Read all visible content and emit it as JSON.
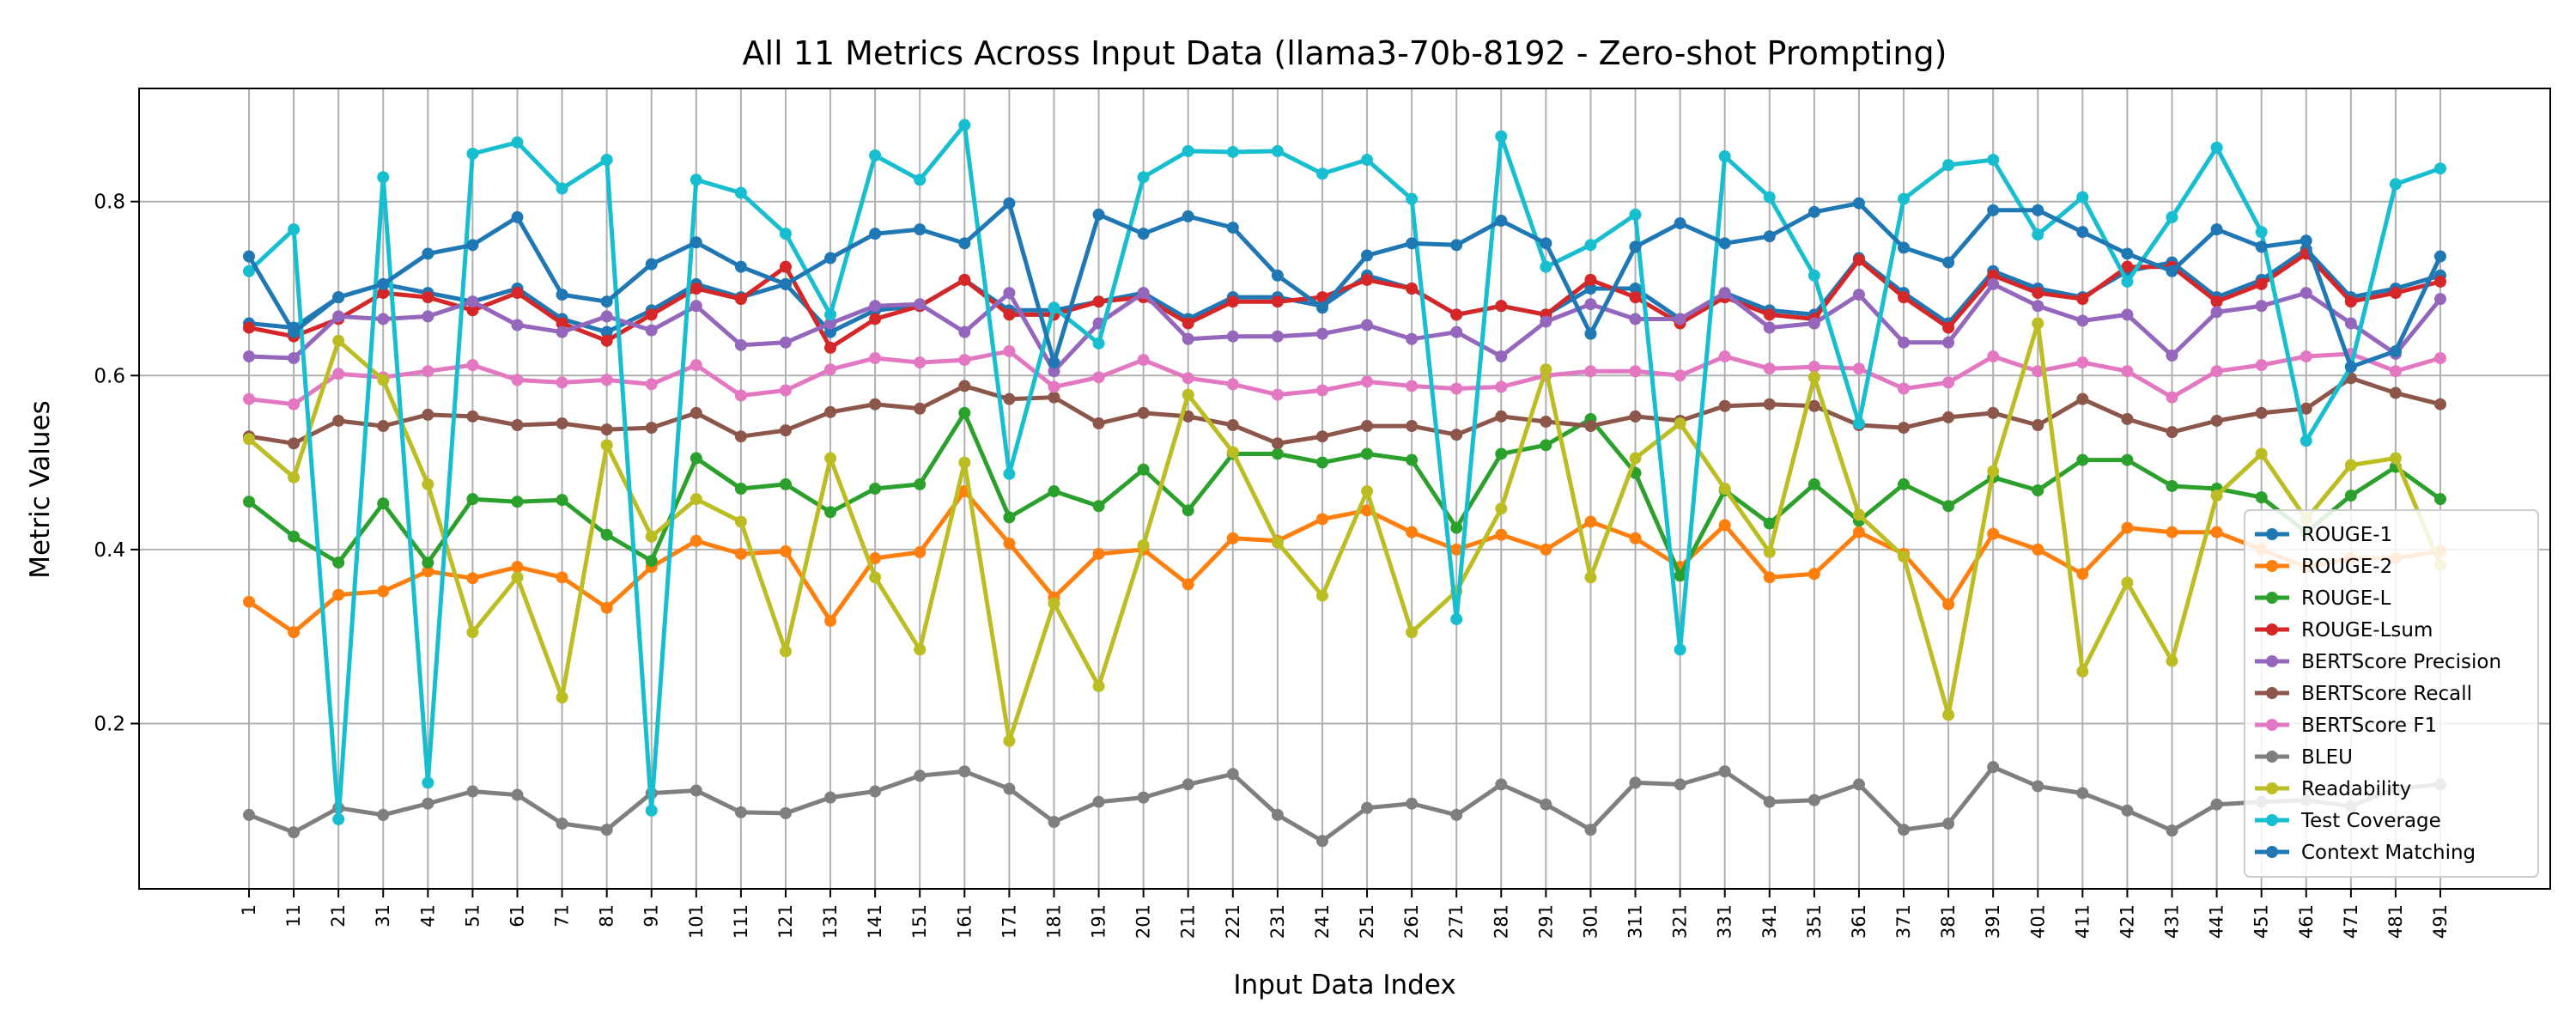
{
  "chart_data": {
    "type": "line",
    "title": "All 11 Metrics Across Input Data (llama3-70b-8192 - Zero-shot Prompting)",
    "xlabel": "Input Data Index",
    "ylabel": "Metric Values",
    "ylim": [
      0.01,
      0.93
    ],
    "yticks": [
      0.2,
      0.4,
      0.6,
      0.8
    ],
    "grid": true,
    "legend_position": "lower-right",
    "x": [
      1,
      11,
      21,
      31,
      41,
      51,
      61,
      71,
      81,
      91,
      101,
      111,
      121,
      131,
      141,
      151,
      161,
      171,
      181,
      191,
      201,
      211,
      221,
      231,
      241,
      251,
      261,
      271,
      281,
      291,
      301,
      311,
      321,
      331,
      341,
      351,
      361,
      371,
      381,
      391,
      401,
      411,
      421,
      431,
      441,
      451,
      461,
      471,
      481,
      491
    ],
    "series": [
      {
        "name": "ROUGE-1",
        "color": "#1f77b4",
        "values": [
          0.66,
          0.655,
          0.69,
          0.705,
          0.695,
          0.685,
          0.7,
          0.665,
          0.65,
          0.675,
          0.705,
          0.69,
          0.705,
          0.65,
          0.675,
          0.68,
          0.71,
          0.675,
          0.675,
          0.685,
          0.695,
          0.665,
          0.69,
          0.69,
          0.68,
          0.715,
          0.7,
          0.67,
          0.68,
          0.67,
          0.7,
          0.7,
          0.665,
          0.695,
          0.675,
          0.67,
          0.735,
          0.695,
          0.66,
          0.72,
          0.7,
          0.69,
          0.72,
          0.73,
          0.69,
          0.71,
          0.745,
          0.69,
          0.7,
          0.715
        ]
      },
      {
        "name": "ROUGE-2",
        "color": "#ff7f0e",
        "values": [
          0.34,
          0.305,
          0.348,
          0.352,
          0.375,
          0.367,
          0.38,
          0.368,
          0.333,
          0.38,
          0.41,
          0.395,
          0.398,
          0.318,
          0.39,
          0.397,
          0.467,
          0.407,
          0.345,
          0.395,
          0.4,
          0.36,
          0.413,
          0.41,
          0.435,
          0.445,
          0.42,
          0.4,
          0.417,
          0.4,
          0.432,
          0.413,
          0.38,
          0.428,
          0.368,
          0.372,
          0.42,
          0.395,
          0.337,
          0.418,
          0.4,
          0.372,
          0.425,
          0.42,
          0.42,
          0.4,
          0.38,
          0.39,
          0.39,
          0.398
        ]
      },
      {
        "name": "ROUGE-L",
        "color": "#2ca02c",
        "values": [
          0.455,
          0.415,
          0.385,
          0.453,
          0.385,
          0.458,
          0.455,
          0.457,
          0.417,
          0.387,
          0.505,
          0.47,
          0.475,
          0.443,
          0.47,
          0.475,
          0.557,
          0.437,
          0.467,
          0.45,
          0.492,
          0.445,
          0.51,
          0.51,
          0.5,
          0.51,
          0.503,
          0.425,
          0.51,
          0.52,
          0.55,
          0.488,
          0.37,
          0.468,
          0.43,
          0.475,
          0.433,
          0.475,
          0.45,
          0.483,
          0.468,
          0.503,
          0.503,
          0.473,
          0.47,
          0.46,
          0.42,
          0.462,
          0.495,
          0.458
        ]
      },
      {
        "name": "ROUGE-Lsum",
        "color": "#d62728",
        "values": [
          0.655,
          0.645,
          0.665,
          0.695,
          0.69,
          0.675,
          0.695,
          0.66,
          0.64,
          0.67,
          0.7,
          0.688,
          0.725,
          0.632,
          0.665,
          0.68,
          0.71,
          0.67,
          0.67,
          0.685,
          0.69,
          0.66,
          0.685,
          0.685,
          0.69,
          0.71,
          0.7,
          0.67,
          0.68,
          0.67,
          0.71,
          0.69,
          0.66,
          0.69,
          0.67,
          0.665,
          0.733,
          0.69,
          0.655,
          0.715,
          0.695,
          0.688,
          0.725,
          0.725,
          0.685,
          0.705,
          0.74,
          0.685,
          0.695,
          0.708
        ]
      },
      {
        "name": "BERTScore Precision",
        "color": "#9467bd",
        "values": [
          0.622,
          0.62,
          0.668,
          0.665,
          0.668,
          0.685,
          0.658,
          0.65,
          0.668,
          0.652,
          0.68,
          0.635,
          0.638,
          0.66,
          0.68,
          0.682,
          0.65,
          0.695,
          0.605,
          0.66,
          0.695,
          0.642,
          0.645,
          0.645,
          0.648,
          0.658,
          0.642,
          0.65,
          0.622,
          0.662,
          0.682,
          0.665,
          0.665,
          0.695,
          0.655,
          0.66,
          0.693,
          0.638,
          0.638,
          0.705,
          0.68,
          0.663,
          0.67,
          0.623,
          0.673,
          0.68,
          0.695,
          0.66,
          0.625,
          0.688
        ]
      },
      {
        "name": "BERTScore Recall",
        "color": "#8c564b",
        "values": [
          0.53,
          0.522,
          0.548,
          0.542,
          0.555,
          0.553,
          0.543,
          0.545,
          0.538,
          0.54,
          0.557,
          0.53,
          0.537,
          0.558,
          0.567,
          0.562,
          0.588,
          0.573,
          0.575,
          0.545,
          0.557,
          0.553,
          0.543,
          0.522,
          0.53,
          0.542,
          0.542,
          0.532,
          0.553,
          0.547,
          0.542,
          0.553,
          0.548,
          0.565,
          0.567,
          0.565,
          0.543,
          0.54,
          0.552,
          0.557,
          0.543,
          0.573,
          0.55,
          0.535,
          0.548,
          0.557,
          0.562,
          0.597,
          0.58,
          0.567
        ]
      },
      {
        "name": "BERTScore F1",
        "color": "#e377c2",
        "values": [
          0.573,
          0.567,
          0.602,
          0.598,
          0.605,
          0.612,
          0.595,
          0.592,
          0.595,
          0.59,
          0.612,
          0.577,
          0.583,
          0.607,
          0.62,
          0.615,
          0.618,
          0.628,
          0.587,
          0.598,
          0.618,
          0.597,
          0.59,
          0.578,
          0.583,
          0.593,
          0.588,
          0.585,
          0.587,
          0.6,
          0.605,
          0.605,
          0.6,
          0.622,
          0.608,
          0.61,
          0.608,
          0.585,
          0.592,
          0.622,
          0.605,
          0.615,
          0.605,
          0.575,
          0.605,
          0.612,
          0.622,
          0.625,
          0.605,
          0.62
        ]
      },
      {
        "name": "BLEU",
        "color": "#7f7f7f",
        "values": [
          0.095,
          0.075,
          0.103,
          0.095,
          0.108,
          0.122,
          0.118,
          0.085,
          0.078,
          0.12,
          0.123,
          0.098,
          0.097,
          0.115,
          0.122,
          0.14,
          0.145,
          0.125,
          0.087,
          0.11,
          0.115,
          0.13,
          0.142,
          0.095,
          0.065,
          0.103,
          0.108,
          0.095,
          0.13,
          0.107,
          0.078,
          0.132,
          0.13,
          0.145,
          0.11,
          0.112,
          0.13,
          0.078,
          0.085,
          0.15,
          0.128,
          0.12,
          0.1,
          0.077,
          0.107,
          0.11,
          0.112,
          0.105,
          0.125,
          0.13
        ]
      },
      {
        "name": "Readability",
        "color": "#bcbd22",
        "values": [
          0.527,
          0.483,
          0.64,
          0.595,
          0.475,
          0.305,
          0.368,
          0.23,
          0.52,
          0.415,
          0.458,
          0.432,
          0.283,
          0.505,
          0.368,
          0.285,
          0.5,
          0.18,
          0.338,
          0.243,
          0.405,
          0.578,
          0.512,
          0.408,
          0.347,
          0.467,
          0.305,
          0.352,
          0.447,
          0.607,
          0.368,
          0.505,
          0.545,
          0.47,
          0.397,
          0.598,
          0.44,
          0.392,
          0.21,
          0.49,
          0.66,
          0.26,
          0.362,
          0.272,
          0.462,
          0.51,
          0.435,
          0.497,
          0.505,
          0.382
        ]
      },
      {
        "name": "Test Coverage",
        "color": "#17becf",
        "values": [
          0.72,
          0.768,
          0.09,
          0.828,
          0.132,
          0.855,
          0.868,
          0.815,
          0.848,
          0.1,
          0.825,
          0.81,
          0.763,
          0.67,
          0.853,
          0.825,
          0.888,
          0.487,
          0.678,
          0.637,
          0.828,
          0.858,
          0.857,
          0.858,
          0.832,
          0.848,
          0.803,
          0.32,
          0.875,
          0.725,
          0.75,
          0.785,
          0.285,
          0.852,
          0.805,
          0.715,
          0.545,
          0.803,
          0.842,
          0.848,
          0.762,
          0.805,
          0.708,
          0.782,
          0.862,
          0.765,
          0.525,
          0.61,
          0.82,
          0.838
        ]
      },
      {
        "name": "Context Matching",
        "color": "#1f77b4",
        "values": [
          0.737,
          0.65,
          0.69,
          0.705,
          0.74,
          0.75,
          0.782,
          0.693,
          0.685,
          0.728,
          0.753,
          0.725,
          0.705,
          0.735,
          0.763,
          0.768,
          0.752,
          0.798,
          0.615,
          0.785,
          0.763,
          0.783,
          0.77,
          0.715,
          0.678,
          0.738,
          0.752,
          0.75,
          0.778,
          0.752,
          0.648,
          0.748,
          0.775,
          0.752,
          0.76,
          0.788,
          0.798,
          0.747,
          0.73,
          0.79,
          0.79,
          0.765,
          0.74,
          0.72,
          0.768,
          0.748,
          0.755,
          0.61,
          0.628,
          0.737
        ]
      }
    ]
  }
}
